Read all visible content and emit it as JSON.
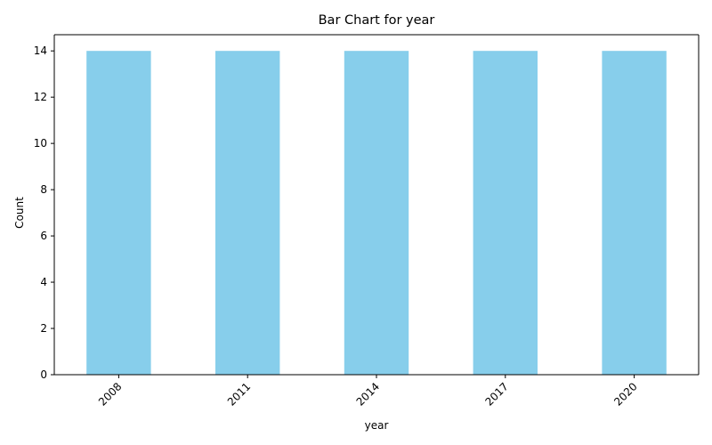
{
  "chart_data": {
    "type": "bar",
    "title": "Bar Chart for year",
    "xlabel": "year",
    "ylabel": "Count",
    "categories": [
      "2008",
      "2011",
      "2014",
      "2017",
      "2020"
    ],
    "values": [
      14,
      14,
      14,
      14,
      14
    ],
    "ylim": [
      0,
      14.7
    ],
    "yticks": [
      0,
      2,
      4,
      6,
      8,
      10,
      12,
      14
    ],
    "xtick_rotation": 45,
    "bar_color": "#87ceeb",
    "grid": false,
    "legend": "none"
  }
}
